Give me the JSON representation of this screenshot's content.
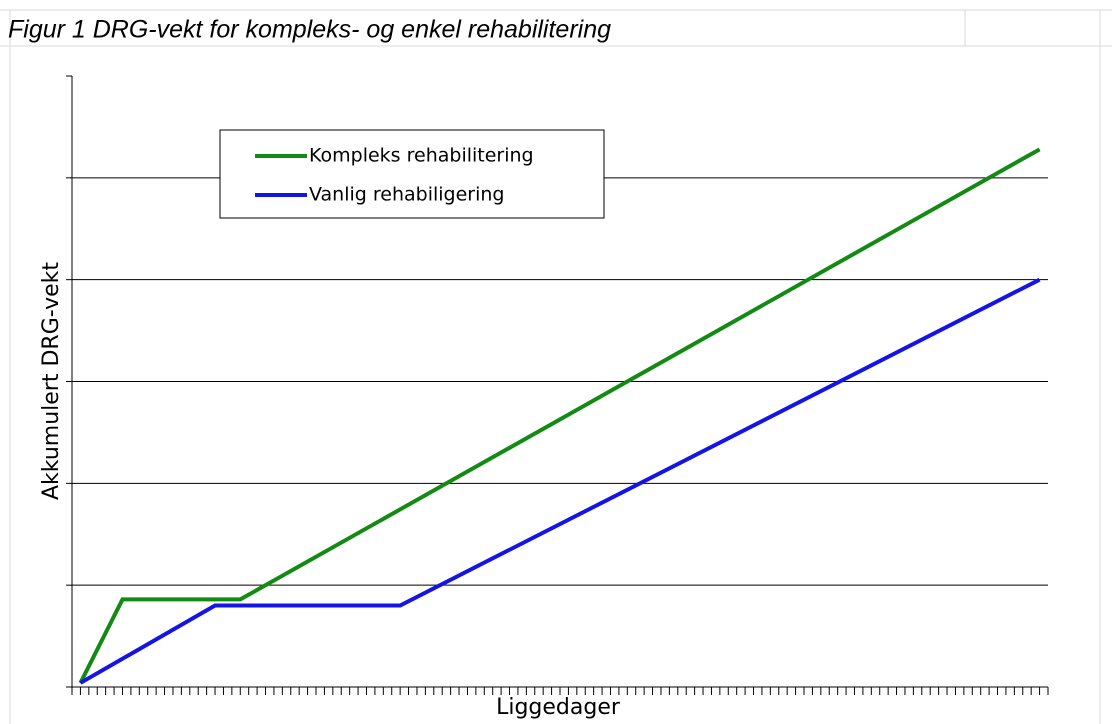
{
  "chart_data": {
    "type": "line",
    "title": "Figur 1  DRG-vekt for kompleks- og enkel rehabilitering",
    "x_label": "Liggedager",
    "y_label": "Akkumulert DRG-vekt",
    "xlim": [
      0,
      116
    ],
    "ylim": [
      0,
      6
    ],
    "yticks": [
      0,
      1,
      2,
      3,
      4,
      5,
      6
    ],
    "xticks": [
      0,
      1,
      2,
      3,
      4,
      5,
      6,
      7,
      8,
      9,
      10,
      11,
      12,
      13,
      14,
      15,
      16,
      17,
      18,
      19,
      20,
      21,
      22,
      23,
      24,
      25,
      26,
      27,
      28,
      29,
      30,
      31,
      32,
      33,
      34,
      35,
      36,
      37,
      38,
      39,
      40,
      41,
      42,
      43,
      44,
      45,
      46,
      47,
      48,
      49,
      50,
      51,
      52,
      53,
      54,
      55,
      56,
      57,
      58,
      59,
      60,
      61,
      62,
      63,
      64,
      65,
      66,
      67,
      68,
      69,
      70,
      71,
      72,
      73,
      74,
      75,
      76,
      77,
      78,
      79,
      80,
      81,
      82,
      83,
      84,
      85,
      86,
      87,
      88,
      89,
      90,
      91,
      92,
      93,
      94,
      95,
      96,
      97,
      98,
      99,
      100,
      101,
      102,
      103,
      104,
      105,
      106,
      107,
      108,
      109,
      110,
      111,
      112,
      113,
      114,
      115,
      116
    ],
    "grid": true,
    "legend": "upper left",
    "series": [
      {
        "name": "Kompleks rehabilitering",
        "color": "#138a13",
        "x": [
          1,
          6,
          20,
          115
        ],
        "values": [
          0.04,
          0.86,
          0.86,
          5.28
        ]
      },
      {
        "name": "Vanlig rehabiligering",
        "color": "#1414e6",
        "x": [
          1,
          17,
          39,
          115
        ],
        "values": [
          0.04,
          0.8,
          0.8,
          4.0
        ]
      }
    ]
  }
}
